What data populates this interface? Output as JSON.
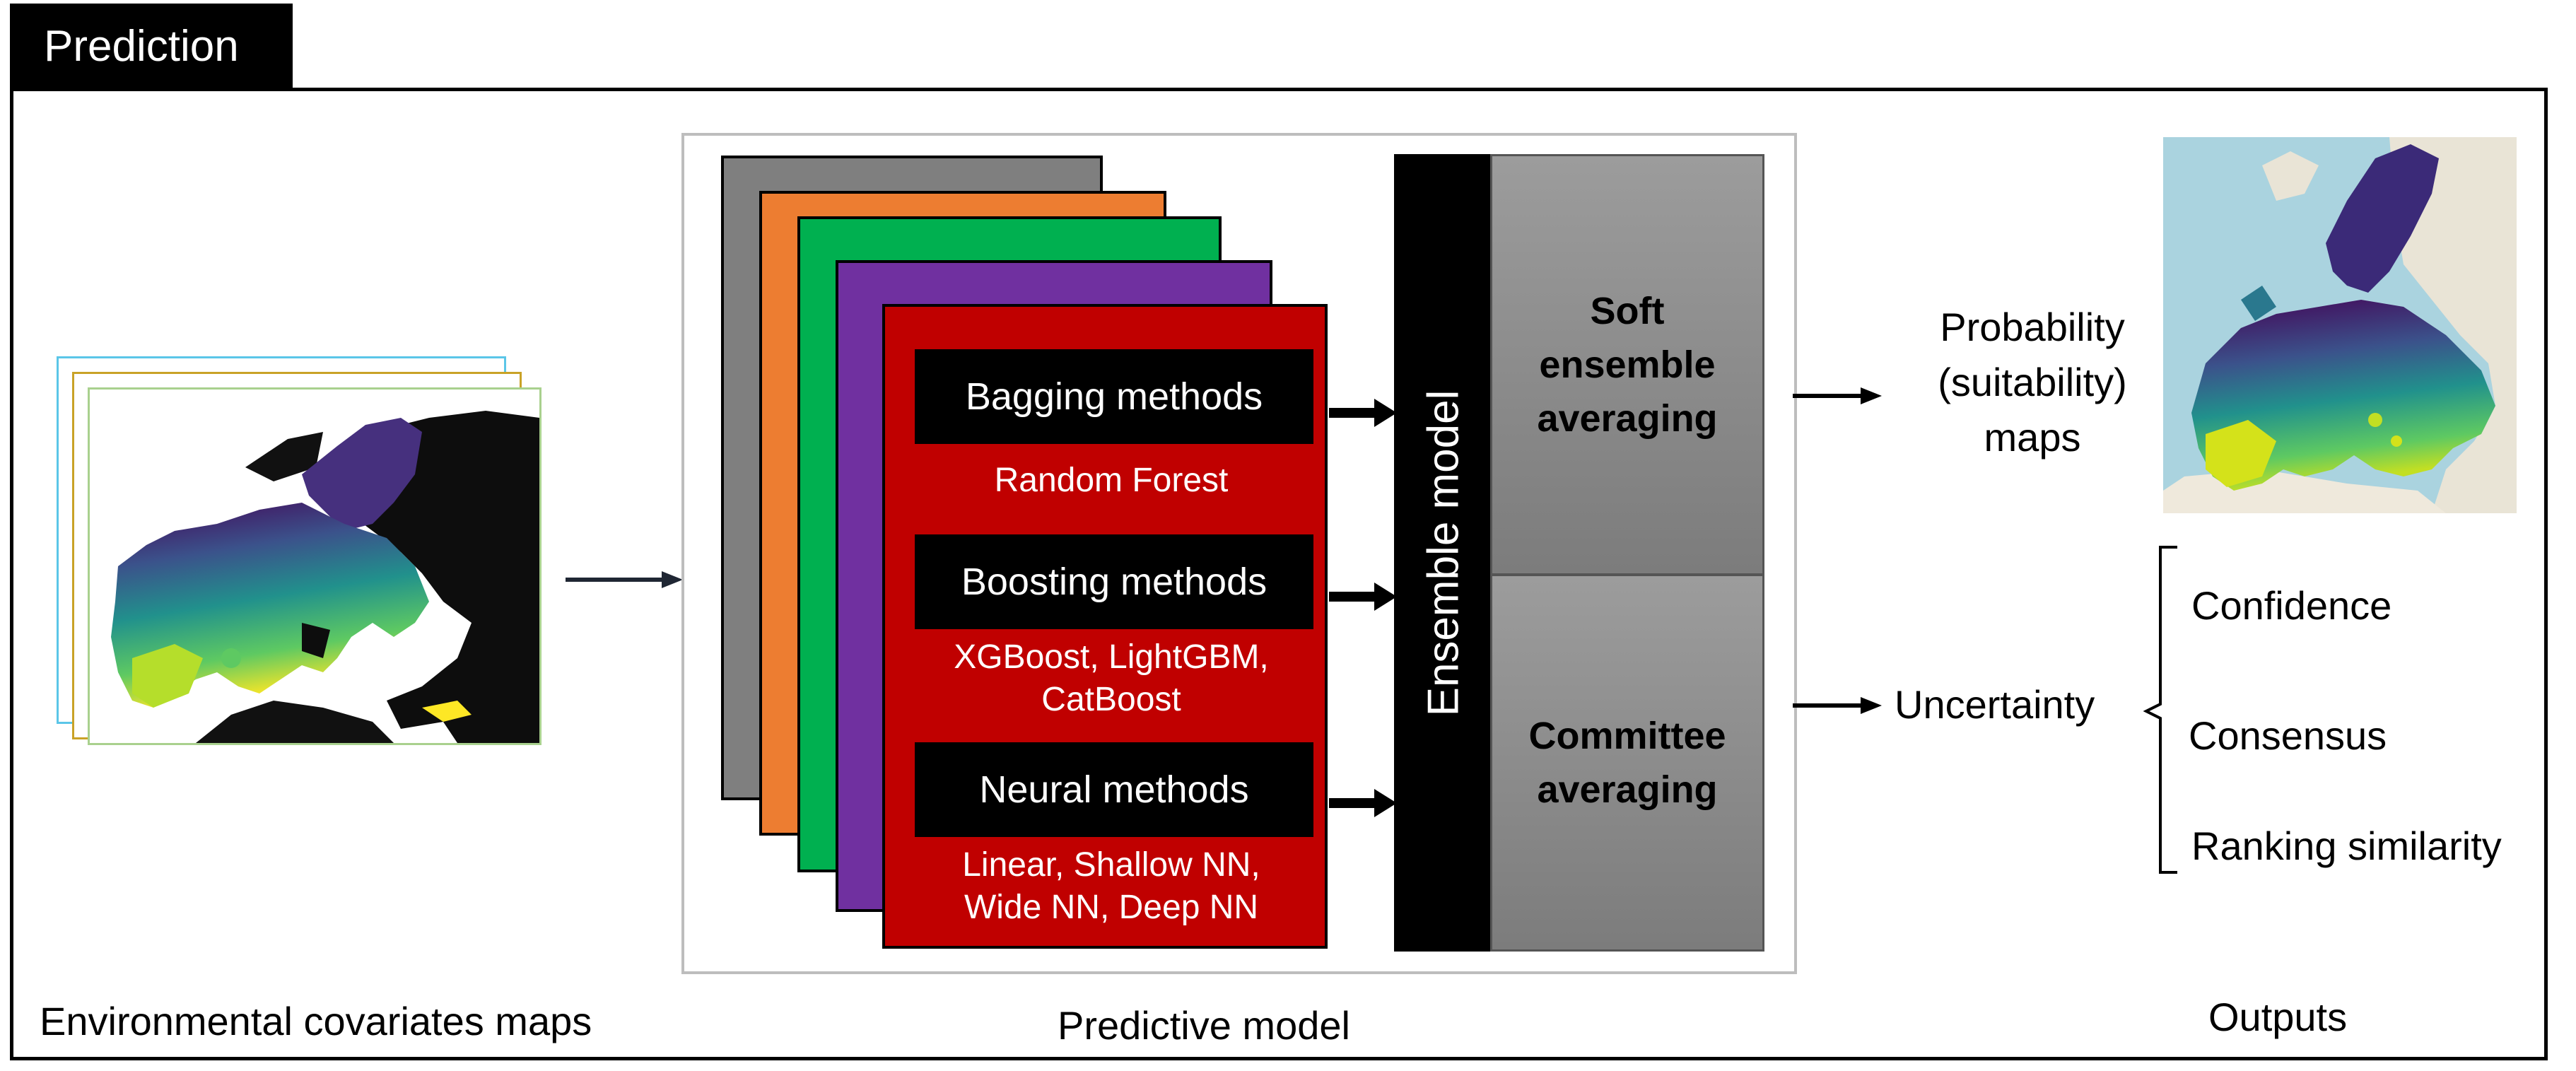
{
  "header": {
    "title": "Prediction"
  },
  "sections": {
    "inputs_label": "Environmental covariates maps",
    "model_label": "Predictive model",
    "outputs_label": "Outputs"
  },
  "methods": [
    {
      "title": "Bagging methods",
      "sub_lines": [
        "Random Forest"
      ]
    },
    {
      "title": "Boosting methods",
      "sub_lines": [
        "XGBoost, LightGBM,",
        "CatBoost"
      ]
    },
    {
      "title": "Neural methods",
      "sub_lines": [
        "Linear, Shallow NN,",
        "Wide NN, Deep NN"
      ]
    }
  ],
  "ensemble": {
    "label": "Ensemble model",
    "soft_lines": [
      "Soft",
      "ensemble",
      "averaging"
    ],
    "committee_lines": [
      "Committee",
      "averaging"
    ]
  },
  "outputs": {
    "probability_lines": [
      "Probability",
      "(suitability)",
      "maps"
    ],
    "uncertainty": "Uncertainty",
    "uncertainty_items": [
      "Confidence",
      "Consensus",
      "Ranking similarity"
    ]
  },
  "colors": {
    "card_gray": "#7f7f7f",
    "card_orange": "#ed7d31",
    "card_green": "#00b050",
    "card_purple": "#7030a0",
    "card_red": "#c00000",
    "sea": "#aad3df",
    "viridis_dark": "#440154",
    "viridis_mid": "#21918c",
    "viridis_light": "#fde725"
  }
}
